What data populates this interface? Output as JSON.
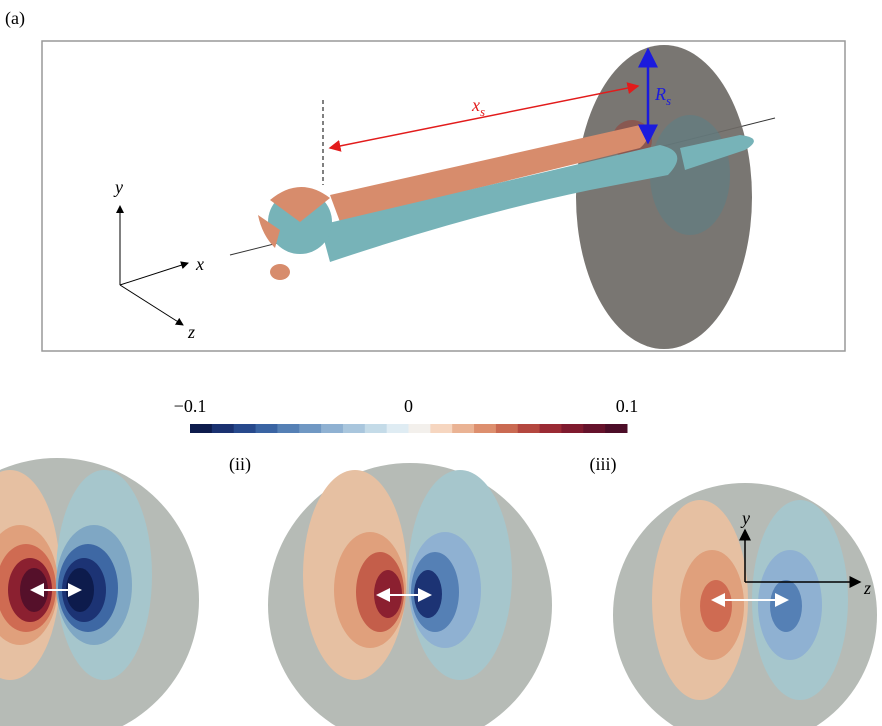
{
  "panel_label": "(a)",
  "triad_a": {
    "y": "y",
    "x": "x",
    "z": "z"
  },
  "xs_label": {
    "base": "x",
    "sub": "s"
  },
  "rs_label": {
    "base": "R",
    "sub": "s"
  },
  "colorbar": {
    "lim": [
      -0.1,
      0.1
    ],
    "ticks": [
      {
        "value": -0.1,
        "label": "−0.1"
      },
      0,
      0.1
    ],
    "colors": [
      "#0d1b4c",
      "#1a3170",
      "#27498c",
      "#3a64a3",
      "#5580b5",
      "#7098c3",
      "#8fb1d2",
      "#a9c6dd",
      "#c4dbe8",
      "#dfecf3",
      "#f3f0ec",
      "#f6d6c0",
      "#eab394",
      "#dd8f6e",
      "#ca6a52",
      "#b4473f",
      "#9a2a34",
      "#7f1a2e",
      "#65122b",
      "#4c0d28"
    ]
  },
  "subpanels": [
    "(ii)",
    "(iii)"
  ],
  "triad_iii": {
    "y": "y",
    "z": "z"
  }
}
